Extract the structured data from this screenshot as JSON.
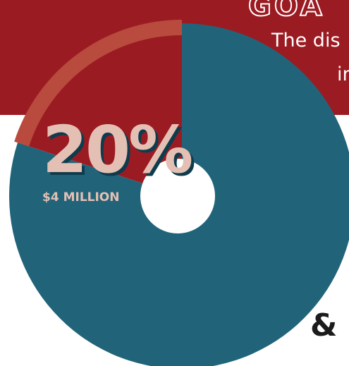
{
  "header": {
    "title": "GOA",
    "subtitle_line1": "The dis",
    "subtitle_line2": "in"
  },
  "chart_data": {
    "type": "pie",
    "slices": [
      {
        "label": "$4 MILLION",
        "value": 20,
        "display": "20%",
        "color": "#9b1b22"
      },
      {
        "label": "",
        "value": 80,
        "color": "#21647a"
      }
    ],
    "highlight_arc_value": 20
  },
  "colors": {
    "banner": "#9b1b22",
    "donut": "#21647a",
    "highlight_arc": "#b84a3e",
    "percent_text": "#e4c0b4",
    "percent_shadow": "#0f3c4d"
  },
  "decor": {
    "ampersand": "&"
  }
}
